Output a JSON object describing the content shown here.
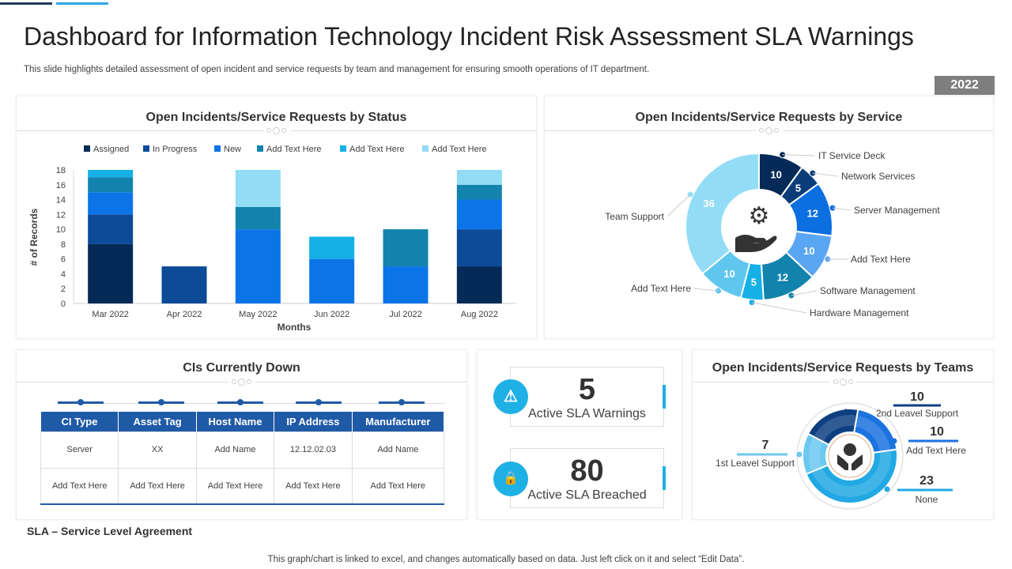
{
  "header": {
    "title": "Dashboard for Information Technology Incident Risk Assessment SLA Warnings",
    "subtitle": "This slide highlights detailed assessment of open incident and service requests by team and management for ensuring smooth operations of IT department.",
    "year": "2022"
  },
  "colors": {
    "dark_navy": "#062a57",
    "navy": "#0d4a98",
    "blue": "#0b75e8",
    "teal": "#1283ac",
    "cyan": "#15b0e6",
    "light": "#93dcf5",
    "header_blue": "#1f5aa6",
    "badge_gray": "#7f7f7f"
  },
  "status_panel": {
    "title": "Open Incidents/Service Requests by Status"
  },
  "service_panel": {
    "title": "Open Incidents/Service Requests by Service",
    "center_icon": "gear-check-hand-icon"
  },
  "cis_panel": {
    "title": "CIs Currently Down",
    "columns": [
      "CI Type",
      "Asset Tag",
      "Host Name",
      "IP Address",
      "Manufacturer"
    ],
    "rows": [
      [
        "Server",
        "XX",
        "Add Name",
        "12.12.02.03",
        "Add Name"
      ],
      [
        "Add Text Here",
        "Add Text Here",
        "Add Text Here",
        "Add Text Here",
        "Add Text Here"
      ]
    ]
  },
  "kpis": [
    {
      "value": "5",
      "label": "Active SLA Warnings",
      "icon": "warning-icon"
    },
    {
      "value": "80",
      "label": "Active SLA Breached",
      "icon": "lock-warning-icon"
    }
  ],
  "teams_panel": {
    "title": "Open Incidents/Service Requests by Teams",
    "center_icon": "person-hands-icon"
  },
  "footer": {
    "note": "SLA – Service Level Agreement",
    "disclaimer": "This graph/chart is linked to excel,  and changes automatically based on data. Just left click on it and select “Edit Data”."
  },
  "chart_data": [
    {
      "type": "bar",
      "stacked": true,
      "title": "Open Incidents/Service Requests by Status",
      "xlabel": "Months",
      "ylabel": "# of Records",
      "ylim": [
        0,
        18
      ],
      "yticks": [
        "0",
        "2",
        "4",
        "6",
        "8",
        "10",
        "12",
        "14",
        "16",
        "18"
      ],
      "legend_position": "top",
      "categories": [
        "Mar 2022",
        "Apr 2022",
        "May 2022",
        "Jun 2022",
        "Jul 2022",
        "Aug 2022"
      ],
      "series": [
        {
          "name": "Assigned",
          "color": "#062a57",
          "values": [
            8,
            0,
            0,
            0,
            0,
            5
          ]
        },
        {
          "name": "In Progress",
          "color": "#0d4a98",
          "values": [
            4,
            5,
            0,
            0,
            0,
            5
          ]
        },
        {
          "name": "New",
          "color": "#0b75e8",
          "values": [
            3,
            0,
            10,
            6,
            5,
            4
          ]
        },
        {
          "name": "Add Text Here",
          "color": "#1283ac",
          "values": [
            2,
            0,
            3,
            0,
            5,
            2
          ]
        },
        {
          "name": "Add Text Here",
          "color": "#15b0e6",
          "values": [
            1,
            0,
            0,
            3,
            0,
            0
          ]
        },
        {
          "name": "Add Text Here",
          "color": "#93dcf5",
          "values": [
            0,
            0,
            5,
            0,
            0,
            2
          ]
        }
      ]
    },
    {
      "type": "pie",
      "donut": true,
      "title": "Open Incidents/Service Requests by Service",
      "slices": [
        {
          "label": "IT Service Deck",
          "value": 10,
          "color": "#062a57"
        },
        {
          "label": "Network Services",
          "value": 5,
          "color": "#0a3c7a"
        },
        {
          "label": "Server Management",
          "value": 12,
          "color": "#0b6fe0"
        },
        {
          "label": "Add Text Here",
          "value": 10,
          "color": "#5aa6f2"
        },
        {
          "label": "Software Management",
          "value": 12,
          "color": "#1283ac"
        },
        {
          "label": "Hardware Management",
          "value": 5,
          "color": "#15b0e6"
        },
        {
          "label": "Add Text Here",
          "value": 10,
          "color": "#5fc7ee"
        },
        {
          "label": "Team Support",
          "value": 36,
          "color": "#93dcf5"
        }
      ]
    },
    {
      "type": "pie",
      "donut": true,
      "title": "Open Incidents/Service Requests by Teams",
      "slices": [
        {
          "label": "2nd Leavel Support",
          "value": 10,
          "color": "#0d3f80"
        },
        {
          "label": "Add Text Here",
          "value": 10,
          "color": "#1a73e0"
        },
        {
          "label": "None",
          "value": 23,
          "color": "#22a8e3"
        },
        {
          "label": "1st Leavel Support",
          "value": 7,
          "color": "#6cc8ef"
        }
      ]
    }
  ]
}
